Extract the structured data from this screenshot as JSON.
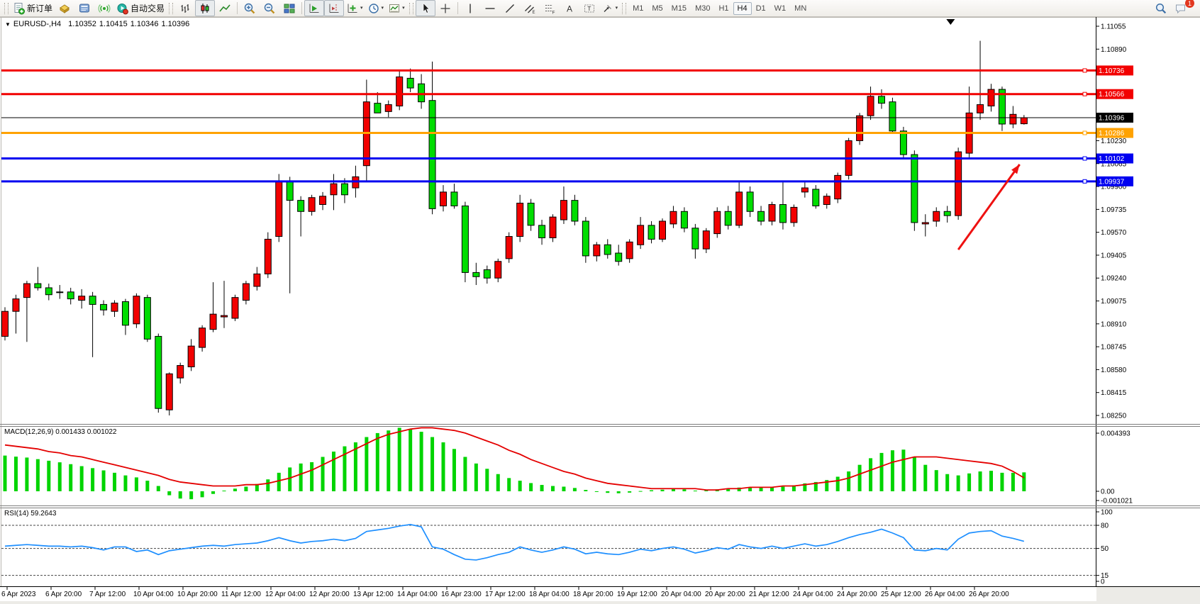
{
  "toolbar": {
    "new_order_label": "新订单",
    "autotrading_label": "自动交易",
    "timeframes": [
      "M1",
      "M5",
      "M15",
      "M30",
      "H1",
      "H4",
      "D1",
      "W1",
      "MN"
    ],
    "active_timeframe": "H4",
    "notification_count": "1"
  },
  "ui": {
    "caret": "▾",
    "symbol_marker": "▼",
    "chart_marker": "▼"
  },
  "chart_header": {
    "symbol_period": "EURUSD-,H4",
    "open": "1.10352",
    "high": "1.10415",
    "low": "1.10346",
    "close": "1.10396"
  },
  "chart_data": {
    "type": "candlestick",
    "symbol": "EURUSD",
    "timeframe": "H4",
    "up_color": "#f20000",
    "down_color": "#00dd00",
    "y_axis": {
      "max": 1.11055,
      "min": 1.0825,
      "tick_step": 0.00165,
      "ticks": [
        "1.11055",
        "1.10890",
        "1.10725",
        "1.10560",
        "1.10395",
        "1.10230",
        "1.10065",
        "1.09900",
        "1.09735",
        "1.09570",
        "1.09405",
        "1.09240",
        "1.09075",
        "1.08910",
        "1.08745",
        "1.08580",
        "1.08415",
        "1.08250"
      ]
    },
    "x_labels": [
      "6 Apr 2023",
      "6 Apr 20:00",
      "7 Apr 12:00",
      "10 Apr 04:00",
      "10 Apr 20:00",
      "11 Apr 12:00",
      "12 Apr 04:00",
      "12 Apr 20:00",
      "13 Apr 12:00",
      "14 Apr 04:00",
      "16 Apr 23:00",
      "17 Apr 12:00",
      "18 Apr 04:00",
      "18 Apr 20:00",
      "19 Apr 12:00",
      "20 Apr 04:00",
      "20 Apr 20:00",
      "21 Apr 12:00",
      "24 Apr 04:00",
      "24 Apr 20:00",
      "25 Apr 12:00",
      "26 Apr 04:00",
      "26 Apr 20:00"
    ],
    "hlines": [
      {
        "label": "1.10736",
        "price": 1.10736,
        "color": "#f20000",
        "width": 3,
        "current": false
      },
      {
        "label": "1.10566",
        "price": 1.10566,
        "color": "#f20000",
        "width": 3,
        "current": false
      },
      {
        "label": "1.10396",
        "price": 1.10396,
        "color": "#000000",
        "width": 1,
        "current": true
      },
      {
        "label": "1.10286",
        "price": 1.10286,
        "color": "#ffa200",
        "width": 3,
        "current": false
      },
      {
        "label": "1.10102",
        "price": 1.10102,
        "color": "#0000f0",
        "width": 3,
        "current": false
      },
      {
        "label": "1.09937",
        "price": 1.09937,
        "color": "#0000f0",
        "width": 3,
        "current": false
      }
    ],
    "candles": {
      "ohlc": [
        [
          1.0882,
          1.0903,
          1.0879,
          1.09
        ],
        [
          1.09,
          1.0912,
          1.0884,
          1.0909
        ],
        [
          1.091,
          1.0922,
          1.0878,
          1.092
        ],
        [
          1.092,
          1.0932,
          1.0915,
          1.0917
        ],
        [
          1.0917,
          1.092,
          1.0908,
          1.0912
        ],
        [
          1.0914,
          1.0919,
          1.0909,
          1.0914
        ],
        [
          1.0914,
          1.0917,
          1.0905,
          1.0909
        ],
        [
          1.0908,
          1.0916,
          1.0902,
          1.0911
        ],
        [
          1.0911,
          1.0914,
          1.0867,
          1.0905
        ],
        [
          1.0905,
          1.0908,
          1.0897,
          1.0901
        ],
        [
          1.09,
          1.0908,
          1.0896,
          1.0906
        ],
        [
          1.0907,
          1.0909,
          1.0883,
          1.089
        ],
        [
          1.0891,
          1.0913,
          1.0888,
          1.0911
        ],
        [
          1.091,
          1.0912,
          1.0878,
          1.088
        ],
        [
          1.0882,
          1.0884,
          1.0827,
          1.083
        ],
        [
          1.0829,
          1.0856,
          1.0825,
          1.0855
        ],
        [
          1.0852,
          1.0863,
          1.0848,
          1.0861
        ],
        [
          1.086,
          1.088,
          1.0857,
          1.0875
        ],
        [
          1.0874,
          1.089,
          1.0871,
          1.0888
        ],
        [
          1.0887,
          1.0921,
          1.0885,
          1.0898
        ],
        [
          1.0896,
          1.0922,
          1.0888,
          1.0897
        ],
        [
          1.0895,
          1.0912,
          1.0893,
          1.091
        ],
        [
          1.0908,
          1.0922,
          1.0905,
          1.092
        ],
        [
          1.0918,
          1.0932,
          1.0915,
          1.0927
        ],
        [
          1.0927,
          1.0957,
          1.0924,
          1.0952
        ],
        [
          1.0954,
          1.0999,
          1.095,
          1.0994
        ],
        [
          1.0994,
          1.0997,
          1.0913,
          1.098
        ],
        [
          1.098,
          1.0983,
          1.0954,
          1.0972
        ],
        [
          1.0972,
          1.0984,
          1.0969,
          1.0982
        ],
        [
          1.0977,
          1.0986,
          1.0973,
          1.0983
        ],
        [
          1.0984,
          1.0999,
          1.0973,
          1.0992
        ],
        [
          1.0992,
          1.0996,
          1.0978,
          1.0984
        ],
        [
          1.0989,
          1.1005,
          1.0982,
          1.0997
        ],
        [
          1.1005,
          1.1067,
          1.0994,
          1.1051
        ],
        [
          1.105,
          1.1058,
          1.1043,
          1.1043
        ],
        [
          1.1044,
          1.1052,
          1.104,
          1.1049
        ],
        [
          1.1048,
          1.1074,
          1.1045,
          1.1069
        ],
        [
          1.1068,
          1.1075,
          1.1058,
          1.1061
        ],
        [
          1.1064,
          1.1071,
          1.1046,
          1.1051
        ],
        [
          1.1052,
          1.108,
          1.097,
          1.0974
        ],
        [
          1.0976,
          1.0991,
          1.0972,
          1.0986
        ],
        [
          1.0986,
          1.0992,
          1.0974,
          1.0976
        ],
        [
          1.0976,
          1.0979,
          1.0921,
          1.0928
        ],
        [
          1.0928,
          1.0935,
          1.0919,
          1.0925
        ],
        [
          1.093,
          1.0933,
          1.092,
          1.0924
        ],
        [
          1.0924,
          1.0938,
          1.0921,
          1.0936
        ],
        [
          1.0938,
          1.0957,
          1.0935,
          1.0954
        ],
        [
          1.0954,
          1.0984,
          1.095,
          1.0978
        ],
        [
          1.0978,
          1.0981,
          1.0958,
          1.0962
        ],
        [
          1.0962,
          1.0966,
          1.0948,
          1.0953
        ],
        [
          1.0953,
          1.097,
          1.095,
          1.0968
        ],
        [
          1.0966,
          1.099,
          1.0963,
          1.098
        ],
        [
          1.098,
          1.0984,
          1.0962,
          1.0965
        ],
        [
          1.0965,
          1.0968,
          1.0935,
          1.094
        ],
        [
          1.094,
          1.095,
          1.0936,
          1.0948
        ],
        [
          1.0948,
          1.0952,
          1.0938,
          1.0941
        ],
        [
          1.0942,
          1.0948,
          1.0933,
          1.0936
        ],
        [
          1.0938,
          1.0952,
          1.0935,
          1.095
        ],
        [
          1.0948,
          1.0968,
          1.0945,
          1.0962
        ],
        [
          1.0962,
          1.0965,
          1.0949,
          1.0952
        ],
        [
          1.0952,
          1.0967,
          1.095,
          1.0965
        ],
        [
          1.0963,
          1.0976,
          1.096,
          1.0972
        ],
        [
          1.0972,
          1.0975,
          1.0957,
          1.096
        ],
        [
          1.096,
          1.0963,
          1.0938,
          1.0945
        ],
        [
          1.0945,
          1.096,
          1.0942,
          1.0958
        ],
        [
          1.0956,
          1.0975,
          1.0953,
          1.0972
        ],
        [
          1.0972,
          1.0976,
          1.0959,
          1.0962
        ],
        [
          1.0962,
          1.0993,
          1.096,
          1.0986
        ],
        [
          1.0986,
          1.099,
          1.0968,
          1.0972
        ],
        [
          1.0972,
          1.0976,
          1.0962,
          1.0965
        ],
        [
          1.0965,
          1.0979,
          1.0962,
          1.0977
        ],
        [
          1.0977,
          1.0993,
          1.0959,
          1.0964
        ],
        [
          1.0964,
          1.0977,
          1.0961,
          1.0975
        ],
        [
          1.0986,
          1.0993,
          1.0982,
          1.0989
        ],
        [
          1.0988,
          1.0991,
          1.0974,
          1.0976
        ],
        [
          1.0977,
          1.0985,
          1.0974,
          1.0983
        ],
        [
          1.0981,
          1.1,
          1.0978,
          1.0998
        ],
        [
          1.0998,
          1.1025,
          1.0995,
          1.1023
        ],
        [
          1.1023,
          1.1043,
          1.102,
          1.1041
        ],
        [
          1.1041,
          1.1062,
          1.1038,
          1.1055
        ],
        [
          1.1055,
          1.106,
          1.1046,
          1.105
        ],
        [
          1.1051,
          1.1054,
          1.1028,
          1.103
        ],
        [
          1.103,
          1.1033,
          1.101,
          1.1013
        ],
        [
          1.1013,
          1.1016,
          1.0958,
          1.0964
        ],
        [
          1.0963,
          1.097,
          1.0954,
          1.0964
        ],
        [
          1.0965,
          1.0975,
          1.0961,
          1.0972
        ],
        [
          1.0972,
          1.0976,
          1.0964,
          1.0969
        ],
        [
          1.0969,
          1.1018,
          1.0966,
          1.1015
        ],
        [
          1.1014,
          1.1062,
          1.1011,
          1.1043
        ],
        [
          1.1043,
          1.1095,
          1.1038,
          1.1049
        ],
        [
          1.1048,
          1.1064,
          1.1044,
          1.106
        ],
        [
          1.106,
          1.1062,
          1.103,
          1.1035
        ],
        [
          1.1035,
          1.1048,
          1.1032,
          1.1042
        ],
        [
          1.10352,
          1.10415,
          1.10346,
          1.10396
        ]
      ]
    },
    "indicators": {
      "macd": {
        "label": "MACD(12,26,9)",
        "values_text": "0.001433 0.001022",
        "axis_labels": [
          "0.004393",
          "0.00",
          "-0.001021"
        ],
        "axis_values": [
          0.004393,
          0,
          -0.001021
        ],
        "histogram_color": "#00d400",
        "signal_color": "#e40000",
        "histogram": [
          0.0027,
          0.00262,
          0.00255,
          0.00243,
          0.00231,
          0.00219,
          0.00205,
          0.0019,
          0.00175,
          0.00158,
          0.0014,
          0.0012,
          0.00105,
          0.0008,
          0.0004,
          -0.0003,
          -0.00055,
          -0.0006,
          -0.00045,
          -0.0002,
          5e-05,
          0.0002,
          0.00035,
          0.00055,
          0.0009,
          0.0014,
          0.0018,
          0.0021,
          0.0022,
          0.0026,
          0.003,
          0.0034,
          0.0037,
          0.0041,
          0.0044,
          0.0046,
          0.0048,
          0.0047,
          0.0045,
          0.0041,
          0.0037,
          0.0032,
          0.0026,
          0.0021,
          0.0017,
          0.0013,
          0.001,
          0.0008,
          0.00062,
          0.00048,
          0.0004,
          0.00035,
          0.00025,
          0.0001,
          -5e-05,
          -0.00012,
          -0.00015,
          -0.0001,
          2e-05,
          8e-05,
          0.00012,
          0.00018,
          0.00015,
          5e-05,
          8e-05,
          0.00015,
          0.00018,
          0.00028,
          0.00032,
          0.0003,
          0.00032,
          0.00035,
          0.00045,
          0.0006,
          0.0007,
          0.00085,
          0.0011,
          0.0015,
          0.002,
          0.0025,
          0.0029,
          0.0031,
          0.00315,
          0.0026,
          0.002,
          0.0016,
          0.0013,
          0.0012,
          0.00135,
          0.0015,
          0.00155,
          0.0014,
          0.0014,
          0.00143
        ],
        "signal": [
          0.0035,
          0.0034,
          0.0033,
          0.0032,
          0.003,
          0.0029,
          0.0027,
          0.0026,
          0.0024,
          0.0022,
          0.002,
          0.0018,
          0.0016,
          0.0014,
          0.0012,
          0.0009,
          0.0007,
          0.0006,
          0.0005,
          0.0004,
          0.0004,
          0.0004,
          0.0005,
          0.0005,
          0.0006,
          0.0008,
          0.001,
          0.0013,
          0.0016,
          0.002,
          0.0024,
          0.0028,
          0.0032,
          0.0036,
          0.004,
          0.0043,
          0.0045,
          0.0047,
          0.0048,
          0.0048,
          0.0047,
          0.0046,
          0.0044,
          0.0041,
          0.0038,
          0.0035,
          0.0031,
          0.0028,
          0.0024,
          0.0021,
          0.0018,
          0.0015,
          0.0013,
          0.001,
          0.0008,
          0.0006,
          0.0005,
          0.0004,
          0.0003,
          0.0002,
          0.0002,
          0.0002,
          0.0002,
          0.0002,
          0.0001,
          0.0001,
          0.0002,
          0.0002,
          0.0003,
          0.0003,
          0.0003,
          0.0004,
          0.0004,
          0.0005,
          0.0006,
          0.0007,
          0.0008,
          0.001,
          0.0013,
          0.0016,
          0.0019,
          0.0022,
          0.0024,
          0.0026,
          0.0026,
          0.0026,
          0.0025,
          0.0024,
          0.0023,
          0.0022,
          0.0021,
          0.0019,
          0.0015,
          0.00102
        ]
      },
      "rsi": {
        "label": "RSI(14)",
        "value_text": "59.2643",
        "line_color": "#1e8fff",
        "levels": [
          80,
          50,
          15
        ],
        "axis_labels": [
          "100",
          "80",
          "50",
          "15",
          "0"
        ],
        "axis_values": [
          100,
          80,
          50,
          15,
          0
        ],
        "values": [
          53,
          54,
          55,
          54,
          53,
          53,
          52,
          53,
          51,
          48,
          52,
          52,
          46,
          48,
          42,
          47,
          49,
          51,
          53,
          54,
          53,
          55,
          56,
          57,
          60,
          64,
          60,
          57,
          59,
          60,
          62,
          60,
          63,
          72,
          74,
          76,
          79,
          81,
          78,
          52,
          49,
          42,
          36,
          35,
          38,
          42,
          45,
          52,
          48,
          45,
          48,
          52,
          49,
          43,
          45,
          43,
          42,
          45,
          49,
          47,
          50,
          52,
          49,
          44,
          47,
          51,
          49,
          55,
          52,
          50,
          53,
          50,
          53,
          56,
          53,
          55,
          59,
          64,
          68,
          71,
          75,
          70,
          64,
          48,
          47,
          50,
          48,
          62,
          70,
          72,
          73,
          66,
          63,
          59.26
        ]
      }
    },
    "annotations": {
      "arrow_up": {
        "from": {
          "index": 87,
          "price": 1.09445
        },
        "to": {
          "index": 92.6,
          "price": 1.10059
        },
        "color": "#ee1111"
      },
      "marker_down": {
        "index": 86.3
      }
    }
  }
}
